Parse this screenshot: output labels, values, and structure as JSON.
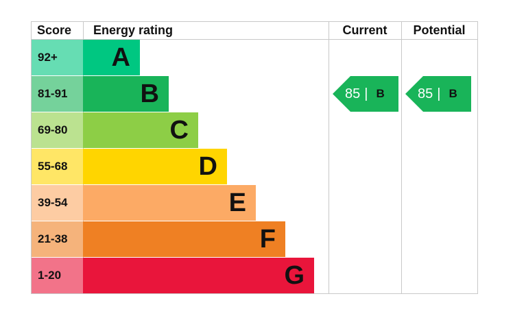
{
  "header": {
    "score": "Score",
    "rating": "Energy rating",
    "current": "Current",
    "potential": "Potential"
  },
  "bands": [
    {
      "range": "92+",
      "letter": "A"
    },
    {
      "range": "81-91",
      "letter": "B"
    },
    {
      "range": "69-80",
      "letter": "C"
    },
    {
      "range": "55-68",
      "letter": "D"
    },
    {
      "range": "39-54",
      "letter": "E"
    },
    {
      "range": "21-38",
      "letter": "F"
    },
    {
      "range": "1-20",
      "letter": "G"
    }
  ],
  "current": {
    "score": "85",
    "separator": "|",
    "letter": "B"
  },
  "potential": {
    "score": "85",
    "separator": "|",
    "letter": "B"
  }
}
